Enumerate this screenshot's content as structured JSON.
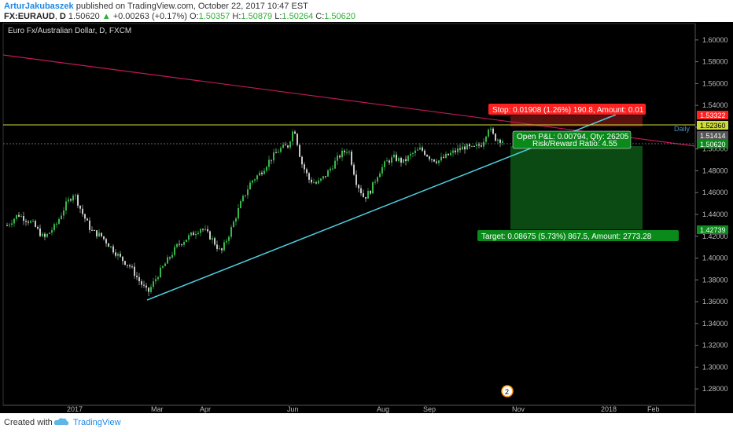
{
  "header": {
    "author": "ArturJakubaszek",
    "published": "published on TradingView.com, October 22, 2017 10:47 EST",
    "symbol": "FX:EURAUD",
    "timeframe": "D",
    "last_price": "1.50620",
    "change": "+0.00263 (+0.17%)",
    "open_label": "O:",
    "open": "1.50357",
    "high_label": "H:",
    "high": "1.50879",
    "low_label": "L:",
    "low": "1.50264",
    "close_label": "C:",
    "close": "1.50620"
  },
  "chart_title": "Euro Fx/Australian Dollar, D, FXCM",
  "colors": {
    "background": "#000000",
    "candle_up": "#39b54a",
    "candle_down": "#c8c8c8",
    "trendline_support": "#4dd0e1",
    "trendline_resistance": "#c2185b",
    "horizontal_level": "#cddc39",
    "stop_zone": "#8b1a1a",
    "target_zone": "#0d4d12"
  },
  "chart_data": {
    "type": "candlestick",
    "y_ticks": [
      "1.60000",
      "1.58000",
      "1.56000",
      "1.54000",
      "1.52000",
      "1.50000",
      "1.48000",
      "1.46000",
      "1.44000",
      "1.42000",
      "1.40000",
      "1.38000",
      "1.36000",
      "1.34000",
      "1.32000",
      "1.30000",
      "1.28000"
    ],
    "x_ticks": [
      "2017",
      "Mar",
      "Apr",
      "Jun",
      "Aug",
      "Sep",
      "Nov",
      "2018",
      "Feb"
    ],
    "ylim": [
      1.265,
      1.615
    ],
    "price_labels": {
      "stop": "1.53322",
      "level": "1.52360",
      "level_name": "Daily",
      "open": "1.51414",
      "current": "1.50620",
      "target": "1.42739"
    },
    "position": {
      "stop_text": "Stop: 0.01908 (1.26%) 190.8, Amount: 0.01",
      "open_pnl_text": "Open P&L: 0.00794, Qty: 26205",
      "risk_reward_text": "Risk/Reward Ratio: 4.55",
      "target_text": "Target: 0.08675 (5.73%) 867.5, Amount: 2773.28"
    },
    "events_badge": "2",
    "levels": {
      "stop": 1.53322,
      "horizontal": 1.5236,
      "entry": 1.51414,
      "current": 1.5062,
      "target": 1.42739
    }
  },
  "footer": {
    "created_with": "Created with",
    "brand": "TradingView"
  }
}
